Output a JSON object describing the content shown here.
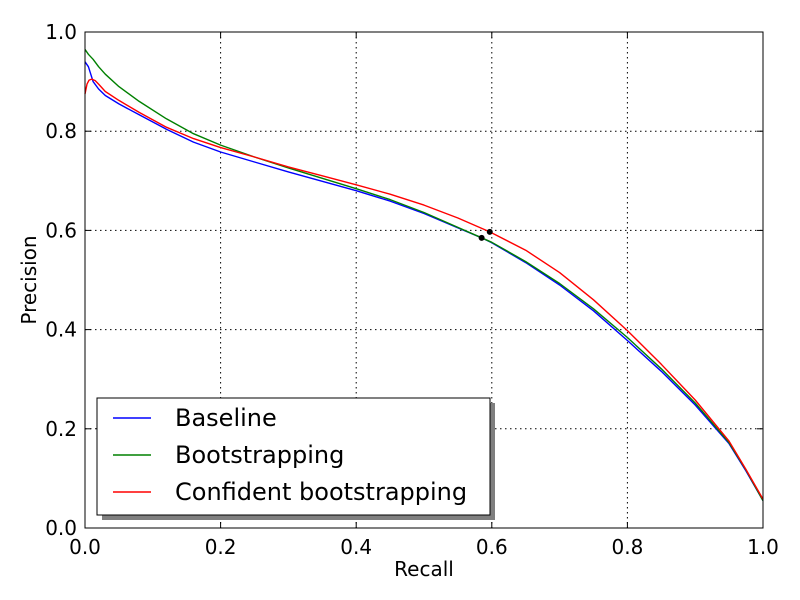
{
  "chart_data": {
    "type": "line",
    "title": "",
    "xlabel": "Recall",
    "ylabel": "Precision",
    "xlim": [
      0.0,
      1.0
    ],
    "ylim": [
      0.0,
      1.0
    ],
    "xticks": [
      "0.0",
      "0.2",
      "0.4",
      "0.6",
      "0.8",
      "1.0"
    ],
    "yticks": [
      "0.0",
      "0.2",
      "0.4",
      "0.6",
      "0.8",
      "1.0"
    ],
    "grid": true,
    "legend_position": "lower-left",
    "series": [
      {
        "name": "Baseline",
        "color": "#0000ff",
        "x": [
          0.0,
          0.005,
          0.012,
          0.02,
          0.03,
          0.05,
          0.08,
          0.12,
          0.16,
          0.2,
          0.25,
          0.3,
          0.35,
          0.4,
          0.45,
          0.5,
          0.55,
          0.585,
          0.6,
          0.65,
          0.7,
          0.75,
          0.8,
          0.85,
          0.9,
          0.95,
          0.975,
          1.0
        ],
        "y": [
          0.94,
          0.93,
          0.9,
          0.885,
          0.872,
          0.855,
          0.833,
          0.804,
          0.778,
          0.758,
          0.738,
          0.718,
          0.699,
          0.68,
          0.659,
          0.634,
          0.605,
          0.585,
          0.575,
          0.535,
          0.49,
          0.438,
          0.378,
          0.316,
          0.248,
          0.17,
          0.115,
          0.055
        ]
      },
      {
        "name": "Bootstrapping",
        "color": "#008000",
        "x": [
          0.0,
          0.005,
          0.012,
          0.02,
          0.03,
          0.05,
          0.08,
          0.12,
          0.16,
          0.2,
          0.25,
          0.3,
          0.35,
          0.4,
          0.45,
          0.5,
          0.55,
          0.585,
          0.6,
          0.65,
          0.7,
          0.75,
          0.8,
          0.85,
          0.9,
          0.95,
          0.975,
          1.0
        ],
        "y": [
          0.965,
          0.955,
          0.945,
          0.93,
          0.915,
          0.89,
          0.86,
          0.825,
          0.795,
          0.772,
          0.748,
          0.726,
          0.705,
          0.684,
          0.662,
          0.636,
          0.606,
          0.585,
          0.576,
          0.537,
          0.493,
          0.442,
          0.384,
          0.321,
          0.252,
          0.172,
          0.117,
          0.055
        ]
      },
      {
        "name": "Confident bootstrapping",
        "color": "#ff0000",
        "x": [
          0.0,
          0.003,
          0.006,
          0.01,
          0.015,
          0.02,
          0.03,
          0.05,
          0.08,
          0.12,
          0.16,
          0.2,
          0.25,
          0.3,
          0.35,
          0.4,
          0.45,
          0.5,
          0.55,
          0.597,
          0.65,
          0.7,
          0.75,
          0.8,
          0.85,
          0.9,
          0.95,
          0.975,
          1.0
        ],
        "y": [
          0.875,
          0.895,
          0.903,
          0.905,
          0.902,
          0.895,
          0.88,
          0.862,
          0.838,
          0.808,
          0.785,
          0.767,
          0.748,
          0.728,
          0.71,
          0.692,
          0.673,
          0.651,
          0.625,
          0.597,
          0.56,
          0.515,
          0.46,
          0.398,
          0.33,
          0.258,
          0.175,
          0.118,
          0.058
        ]
      }
    ],
    "markers": [
      {
        "x": 0.585,
        "y": 0.585,
        "color": "#000000"
      },
      {
        "x": 0.597,
        "y": 0.597,
        "color": "#000000"
      }
    ]
  }
}
